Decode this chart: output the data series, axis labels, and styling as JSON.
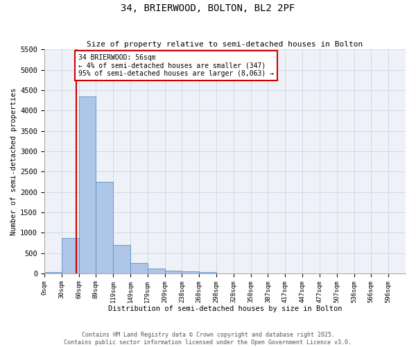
{
  "title": "34, BRIERWOOD, BOLTON, BL2 2PF",
  "subtitle": "Size of property relative to semi-detached houses in Bolton",
  "xlabel": "Distribution of semi-detached houses by size in Bolton",
  "ylabel": "Number of semi-detached properties",
  "bin_labels": [
    "0sqm",
    "30sqm",
    "60sqm",
    "89sqm",
    "119sqm",
    "149sqm",
    "179sqm",
    "209sqm",
    "238sqm",
    "268sqm",
    "298sqm",
    "328sqm",
    "358sqm",
    "387sqm",
    "417sqm",
    "447sqm",
    "477sqm",
    "507sqm",
    "536sqm",
    "566sqm",
    "596sqm"
  ],
  "bar_heights": [
    30,
    860,
    4350,
    2250,
    690,
    255,
    120,
    65,
    55,
    35,
    0,
    0,
    0,
    0,
    0,
    0,
    0,
    0,
    0,
    0,
    0
  ],
  "bar_color": "#aec6e8",
  "bar_edge_color": "#5a8fc2",
  "annotation_box_text": "34 BRIERWOOD: 56sqm\n← 4% of semi-detached houses are smaller (347)\n95% of semi-detached houses are larger (8,063) →",
  "vline_color": "#cc0000",
  "ylim": [
    0,
    5500
  ],
  "yticks": [
    0,
    500,
    1000,
    1500,
    2000,
    2500,
    3000,
    3500,
    4000,
    4500,
    5000,
    5500
  ],
  "footer_line1": "Contains HM Land Registry data © Crown copyright and database right 2025.",
  "footer_line2": "Contains public sector information licensed under the Open Government Licence v3.0.",
  "background_color": "#eef2f8",
  "plot_background": "#ffffff"
}
